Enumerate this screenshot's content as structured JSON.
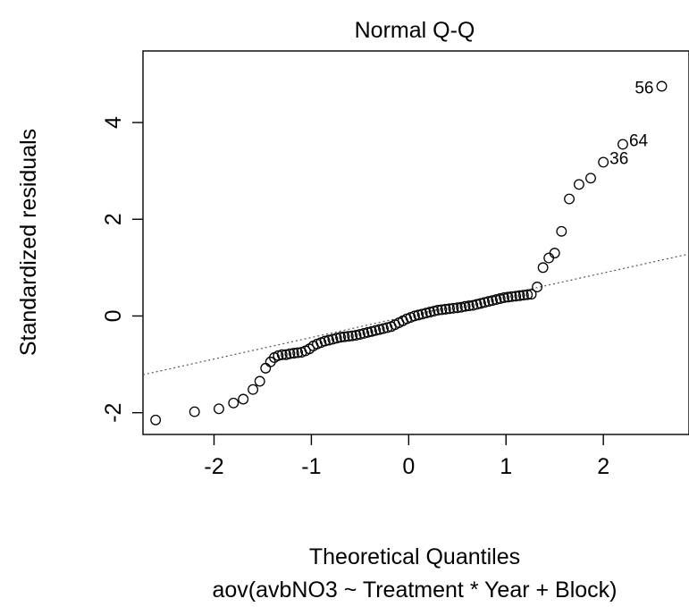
{
  "chart_data": {
    "type": "scatter",
    "title": "Normal Q-Q",
    "xlabel": "Theoretical Quantiles",
    "ylabel": "Standardized residuals",
    "subtitle": "aov(avbNO3 ~ Treatment * Year + Block)",
    "xlim": [
      -2.73,
      2.88
    ],
    "ylim": [
      -2.45,
      5.48
    ],
    "x_ticks": [
      -2,
      -1,
      0,
      1,
      2
    ],
    "y_ticks": [
      -2,
      0,
      2,
      4
    ],
    "x_tick_labels": [
      "-2",
      "-1",
      "0",
      "1",
      "2"
    ],
    "y_tick_labels": [
      "-2",
      "0",
      "2",
      "4"
    ],
    "grid": false,
    "reference_line": {
      "slope": 0.445,
      "intercept": 0.0,
      "style": "dotted",
      "color": "#555555"
    },
    "point_labels": [
      {
        "text": "56",
        "x": 2.6,
        "y": 4.75,
        "side": "left"
      },
      {
        "text": "64",
        "x": 2.2,
        "y": 3.55,
        "side": "right"
      },
      {
        "text": "36",
        "x": 2.0,
        "y": 3.18,
        "side": "right"
      }
    ],
    "series": [
      {
        "marker": "open-circle",
        "x": [
          -2.6,
          -2.2,
          -1.95,
          -1.8,
          -1.7,
          -1.6,
          -1.53,
          -1.47,
          -1.42,
          -1.38,
          -1.34,
          -1.3,
          -1.26,
          -1.22,
          -1.18,
          -1.14,
          -1.1,
          -1.06,
          -1.02,
          -0.98,
          -0.94,
          -0.9,
          -0.86,
          -0.82,
          -0.78,
          -0.74,
          -0.7,
          -0.66,
          -0.62,
          -0.58,
          -0.54,
          -0.5,
          -0.46,
          -0.42,
          -0.38,
          -0.34,
          -0.3,
          -0.26,
          -0.22,
          -0.18,
          -0.14,
          -0.1,
          -0.06,
          -0.02,
          0.02,
          0.06,
          0.1,
          0.14,
          0.18,
          0.22,
          0.26,
          0.3,
          0.34,
          0.38,
          0.42,
          0.46,
          0.5,
          0.54,
          0.58,
          0.62,
          0.66,
          0.7,
          0.74,
          0.78,
          0.82,
          0.86,
          0.9,
          0.94,
          0.98,
          1.02,
          1.06,
          1.1,
          1.14,
          1.18,
          1.22,
          1.26,
          1.32,
          1.38,
          1.44,
          1.5,
          1.57,
          1.65,
          1.75,
          1.87,
          2.0,
          2.2,
          2.6
        ],
        "y": [
          -2.15,
          -1.98,
          -1.92,
          -1.8,
          -1.72,
          -1.52,
          -1.35,
          -1.08,
          -0.95,
          -0.86,
          -0.82,
          -0.8,
          -0.8,
          -0.78,
          -0.77,
          -0.76,
          -0.75,
          -0.72,
          -0.68,
          -0.62,
          -0.58,
          -0.55,
          -0.52,
          -0.5,
          -0.48,
          -0.46,
          -0.44,
          -0.43,
          -0.42,
          -0.41,
          -0.4,
          -0.38,
          -0.36,
          -0.34,
          -0.32,
          -0.3,
          -0.28,
          -0.26,
          -0.24,
          -0.22,
          -0.18,
          -0.14,
          -0.1,
          -0.06,
          -0.03,
          0.0,
          0.02,
          0.04,
          0.06,
          0.08,
          0.1,
          0.12,
          0.13,
          0.14,
          0.15,
          0.16,
          0.17,
          0.18,
          0.2,
          0.21,
          0.22,
          0.24,
          0.26,
          0.28,
          0.3,
          0.32,
          0.34,
          0.36,
          0.38,
          0.39,
          0.4,
          0.41,
          0.42,
          0.43,
          0.44,
          0.45,
          0.6,
          1.0,
          1.2,
          1.3,
          1.75,
          2.42,
          2.72,
          2.85,
          3.18,
          3.55,
          4.75
        ]
      }
    ]
  }
}
